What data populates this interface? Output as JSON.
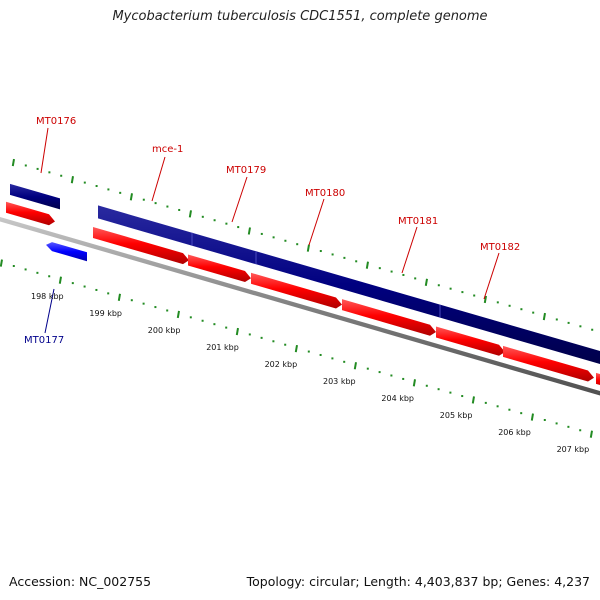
{
  "title": "Mycobacterium tuberculosis CDC1551, complete genome",
  "footer": {
    "accession": "Accession: NC_002755",
    "topology": "Topology: circular; Length: 4,403,837 bp; Genes: 4,237"
  },
  "colors": {
    "forward_strand_gene": "#ff0000",
    "forward_label": "#cc0000",
    "reverse_strand_gene": "#0000ff",
    "reverse_label": "#00008b",
    "operon_band": "#000080",
    "backbone": "#808080",
    "tick": "#228b22"
  },
  "kbp_labels": [
    "198 kbp",
    "199 kbp",
    "200 kbp",
    "201 kbp",
    "202 kbp",
    "203 kbp",
    "204 kbp",
    "205 kbp",
    "206 kbp",
    "207 kbp"
  ],
  "gene_labels": [
    {
      "name": "MT0176",
      "strand": "forward"
    },
    {
      "name": "mce-1",
      "strand": "forward"
    },
    {
      "name": "MT0179",
      "strand": "forward"
    },
    {
      "name": "MT0180",
      "strand": "forward"
    },
    {
      "name": "MT0181",
      "strand": "forward"
    },
    {
      "name": "MT0182",
      "strand": "forward"
    },
    {
      "name": "MT0177",
      "strand": "reverse"
    }
  ]
}
